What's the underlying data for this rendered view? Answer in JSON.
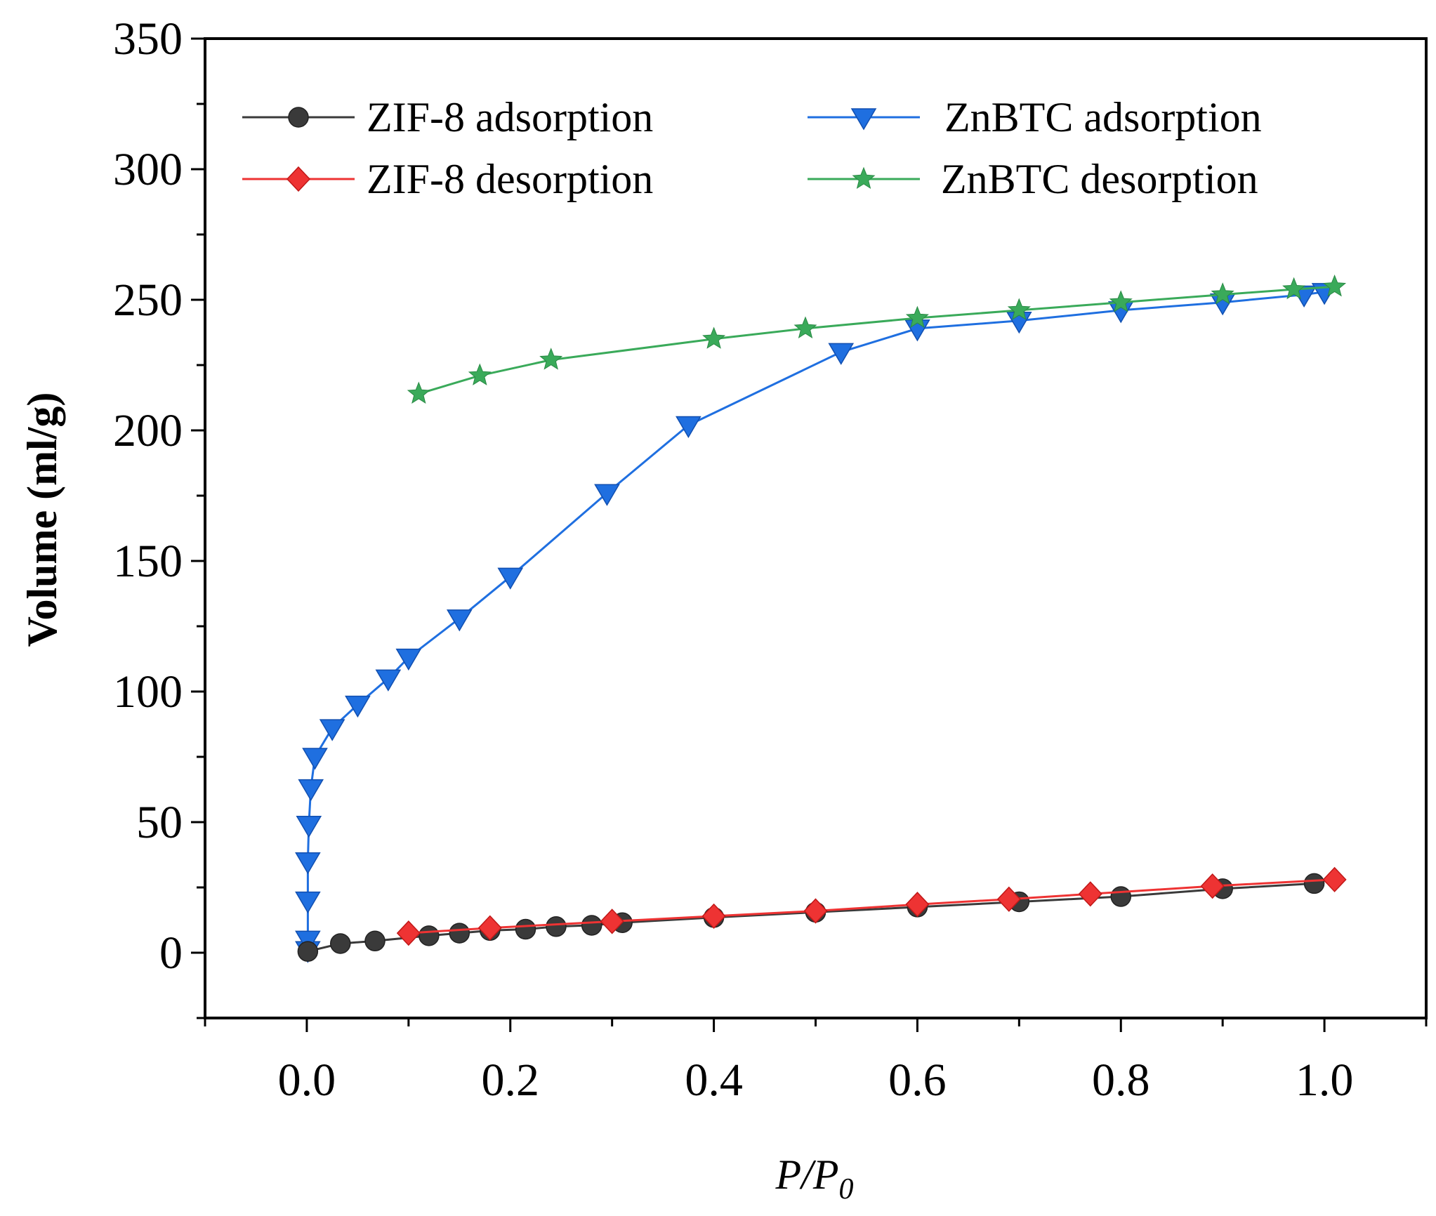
{
  "chart_data": {
    "type": "line",
    "title": "",
    "xlabel_main": "P/P",
    "xlabel_sub": "0",
    "ylabel": "Volume (ml/g)",
    "xlim": [
      -0.1,
      1.1
    ],
    "ylim": [
      -25,
      350
    ],
    "x_ticks": [
      0.0,
      0.2,
      0.4,
      0.6,
      0.8,
      1.0
    ],
    "x_tick_labels": [
      "0.0",
      "0.2",
      "0.4",
      "0.6",
      "0.8",
      "1.0"
    ],
    "y_ticks": [
      0,
      50,
      100,
      150,
      200,
      250,
      300,
      350
    ],
    "y_tick_labels": [
      "0",
      "50",
      "100",
      "150",
      "200",
      "250",
      "300",
      "350"
    ],
    "grid": false,
    "legend_position": "top",
    "series": [
      {
        "name": "ZIF-8 adsorption",
        "color": "#3a3a3a",
        "marker": "circle",
        "x": [
          0.001,
          0.033,
          0.067,
          0.12,
          0.15,
          0.18,
          0.215,
          0.245,
          0.28,
          0.31,
          0.4,
          0.5,
          0.6,
          0.7,
          0.8,
          0.9,
          0.99
        ],
        "y": [
          0.5,
          3.5,
          4.5,
          6.5,
          7.5,
          8.5,
          9,
          10,
          10.5,
          11.5,
          13.5,
          15.5,
          17.5,
          19.5,
          21.5,
          24.5,
          26.5
        ]
      },
      {
        "name": "ZIF-8 desorption",
        "color": "#ee3333",
        "marker": "diamond",
        "x": [
          0.1,
          0.18,
          0.3,
          0.4,
          0.5,
          0.6,
          0.69,
          0.77,
          0.89,
          1.01
        ],
        "y": [
          7.5,
          9.5,
          12,
          14,
          16,
          18.5,
          20.5,
          22.5,
          25.5,
          28
        ]
      },
      {
        "name": "ZnBTC adsorption",
        "color": "#1f6fe0",
        "marker": "triangle-down",
        "x": [
          0.001,
          0.001,
          0.001,
          0.001,
          0.002,
          0.004,
          0.008,
          0.025,
          0.05,
          0.08,
          0.1,
          0.15,
          0.2,
          0.295,
          0.375,
          0.525,
          0.6,
          0.7,
          0.8,
          0.9,
          0.98,
          1.0
        ],
        "y": [
          1,
          5,
          20,
          35,
          49,
          63,
          75,
          86,
          95,
          105,
          113,
          128,
          144,
          176,
          202,
          230,
          239,
          242,
          246,
          249,
          252,
          253
        ]
      },
      {
        "name": "ZnBTC desorption",
        "color": "#3aaa5a",
        "marker": "star",
        "x": [
          0.11,
          0.17,
          0.24,
          0.4,
          0.49,
          0.6,
          0.7,
          0.8,
          0.9,
          0.97,
          1.01
        ],
        "y": [
          214,
          221,
          227,
          235,
          239,
          243,
          246,
          249,
          252,
          254,
          255
        ]
      }
    ]
  }
}
